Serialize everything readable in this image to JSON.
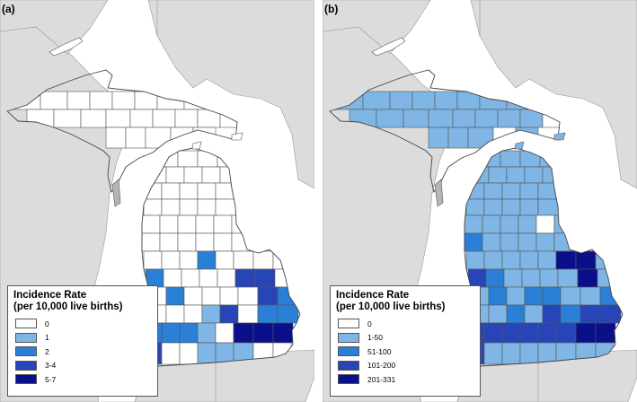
{
  "colors": {
    "land": "#dcdcdc",
    "water": "#ffffff",
    "county_border": "#555555"
  },
  "panels": [
    {
      "label": "(a)",
      "legend": {
        "title_line1": "Incidence Rate",
        "title_line2": "(per 10,000 live births)",
        "classes": [
          {
            "label": "0",
            "color": "#ffffff"
          },
          {
            "label": "1",
            "color": "#7fb6e6"
          },
          {
            "label": "2",
            "color": "#2a7fd6"
          },
          {
            "label": "3-4",
            "color": "#2745b8"
          },
          {
            "label": "5-7",
            "color": "#0a0f8a"
          }
        ]
      }
    },
    {
      "label": "(b)",
      "legend": {
        "title_line1": "Incidence Rate",
        "title_line2": "(per 10,000 live births)",
        "classes": [
          {
            "label": "0",
            "color": "#ffffff"
          },
          {
            "label": "1-50",
            "color": "#7fb6e6"
          },
          {
            "label": "51-100",
            "color": "#2a7fd6"
          },
          {
            "label": "101-200",
            "color": "#2745b8"
          },
          {
            "label": "201-331",
            "color": "#0a0f8a"
          }
        ]
      }
    }
  ]
}
